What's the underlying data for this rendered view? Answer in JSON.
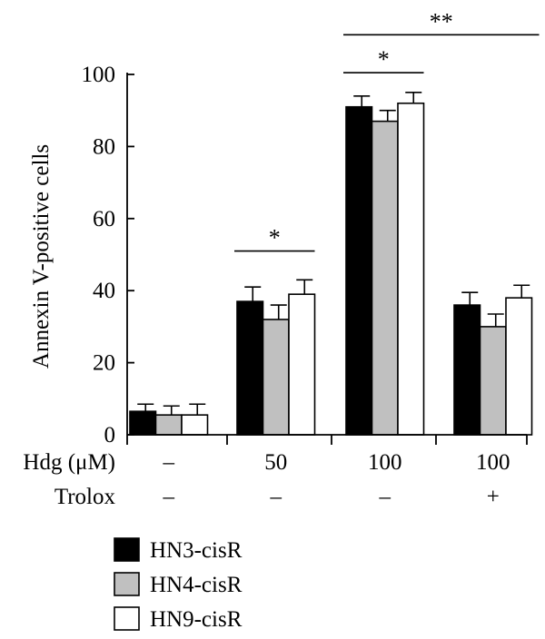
{
  "chart_data": {
    "type": "bar",
    "ylabel": "Annexin V-positive cells",
    "ylim": [
      0,
      100
    ],
    "yticks": [
      0,
      20,
      40,
      60,
      80,
      100
    ],
    "grid": false,
    "categories": [
      {
        "hdg": "–",
        "trolox": "–"
      },
      {
        "hdg": "50",
        "trolox": "–"
      },
      {
        "hdg": "100",
        "trolox": "–"
      },
      {
        "hdg": "100",
        "trolox": "+"
      }
    ],
    "row_labels": {
      "hdg": "Hdg (μM)",
      "trolox": "Trolox"
    },
    "series": [
      {
        "name": "HN3-cisR",
        "color": "#000000",
        "values": [
          6.5,
          37,
          91,
          36
        ],
        "errors": [
          2,
          4,
          3,
          3.5
        ]
      },
      {
        "name": "HN4-cisR",
        "color": "#c0c0c0",
        "values": [
          5.5,
          32,
          87,
          30
        ],
        "errors": [
          2.5,
          4,
          3,
          3.5
        ]
      },
      {
        "name": "HN9-cisR",
        "color": "#ffffff",
        "values": [
          5.5,
          39,
          92,
          38
        ],
        "errors": [
          3,
          4,
          3,
          3.5
        ]
      }
    ],
    "significance": [
      {
        "from": 1,
        "to": 1,
        "label": "*",
        "y": 51
      },
      {
        "from": 2,
        "to": 2,
        "label": "*",
        "y": 100.5
      },
      {
        "from": 2,
        "to": 3,
        "label": "**",
        "y": 111
      }
    ],
    "legend_position": "bottom-left"
  }
}
